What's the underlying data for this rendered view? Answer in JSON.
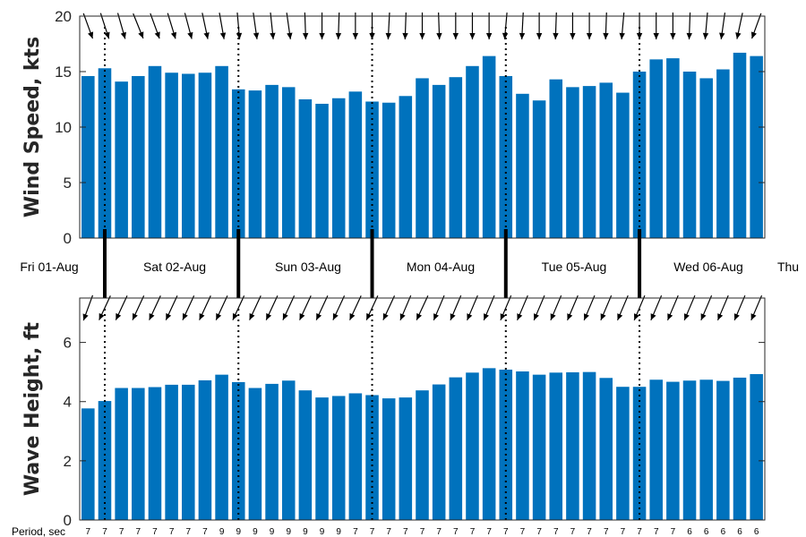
{
  "chart_data": [
    {
      "type": "bar",
      "ylabel": "Wind Speed, kts",
      "ylim": [
        0,
        20
      ],
      "yticks": [
        0,
        5,
        10,
        15,
        20
      ],
      "grid": false,
      "color": "#0072bd",
      "values": [
        14.6,
        15.3,
        14.1,
        14.6,
        15.5,
        14.9,
        14.8,
        14.9,
        15.5,
        13.4,
        13.3,
        13.8,
        13.6,
        12.5,
        12.1,
        12.6,
        13.2,
        12.3,
        12.2,
        12.8,
        14.4,
        13.8,
        14.5,
        15.5,
        16.4,
        14.6,
        13.0,
        12.4,
        14.3,
        13.6,
        13.7,
        14.0,
        13.1,
        15.0,
        16.1,
        16.2,
        15.0,
        14.4,
        15.2,
        16.7,
        16.4
      ],
      "direction_to_deg": [
        160,
        162,
        164,
        158,
        160,
        163,
        165,
        168,
        170,
        175,
        172,
        174,
        172,
        178,
        180,
        182,
        180,
        180,
        183,
        182,
        180,
        178,
        180,
        180,
        180,
        185,
        183,
        180,
        182,
        180,
        180,
        182,
        185,
        180,
        180,
        180,
        182,
        185,
        188,
        192,
        200
      ]
    },
    {
      "type": "bar",
      "ylabel": "Wave Height, ft",
      "ylim": [
        0,
        7.5
      ],
      "yticks": [
        0,
        2,
        4,
        6
      ],
      "grid": false,
      "color": "#0072bd",
      "values": [
        3.77,
        4.02,
        4.46,
        4.46,
        4.49,
        4.57,
        4.57,
        4.72,
        4.91,
        4.66,
        4.46,
        4.6,
        4.71,
        4.38,
        4.14,
        4.19,
        4.28,
        4.22,
        4.11,
        4.14,
        4.38,
        4.58,
        4.82,
        4.98,
        5.13,
        5.08,
        5.02,
        4.91,
        4.98,
        4.99,
        5.0,
        4.8,
        4.5,
        4.5,
        4.74,
        4.67,
        4.71,
        4.74,
        4.7,
        4.81,
        4.93
      ],
      "direction_to_deg": [
        200,
        205,
        205,
        205,
        205,
        205,
        205,
        205,
        205,
        205,
        205,
        205,
        205,
        205,
        205,
        205,
        205,
        205,
        205,
        203,
        205,
        203,
        203,
        203,
        203,
        203,
        203,
        203,
        203,
        203,
        203,
        203,
        203,
        203,
        203,
        203,
        203,
        203,
        203,
        203,
        203
      ]
    }
  ],
  "days": [
    {
      "label": "Fri 01-Aug"
    },
    {
      "label": "Sat 02-Aug"
    },
    {
      "label": "Sun 03-Aug"
    },
    {
      "label": "Mon 04-Aug"
    },
    {
      "label": "Tue 05-Aug"
    },
    {
      "label": "Wed 06-Aug"
    },
    {
      "label": "Thu"
    }
  ],
  "period": {
    "label": "Period, sec",
    "values": [
      7,
      7,
      7,
      7,
      7,
      7,
      7,
      7,
      9,
      9,
      9,
      9,
      9,
      9,
      9,
      9,
      7,
      7,
      7,
      7,
      7,
      7,
      7,
      7,
      7,
      7,
      7,
      7,
      7,
      7,
      7,
      7,
      7,
      7,
      7,
      7,
      6,
      6,
      6,
      6,
      6
    ]
  },
  "colors": {
    "bar": "#0072bd",
    "axis": "#262626",
    "arrow": "#000000"
  }
}
